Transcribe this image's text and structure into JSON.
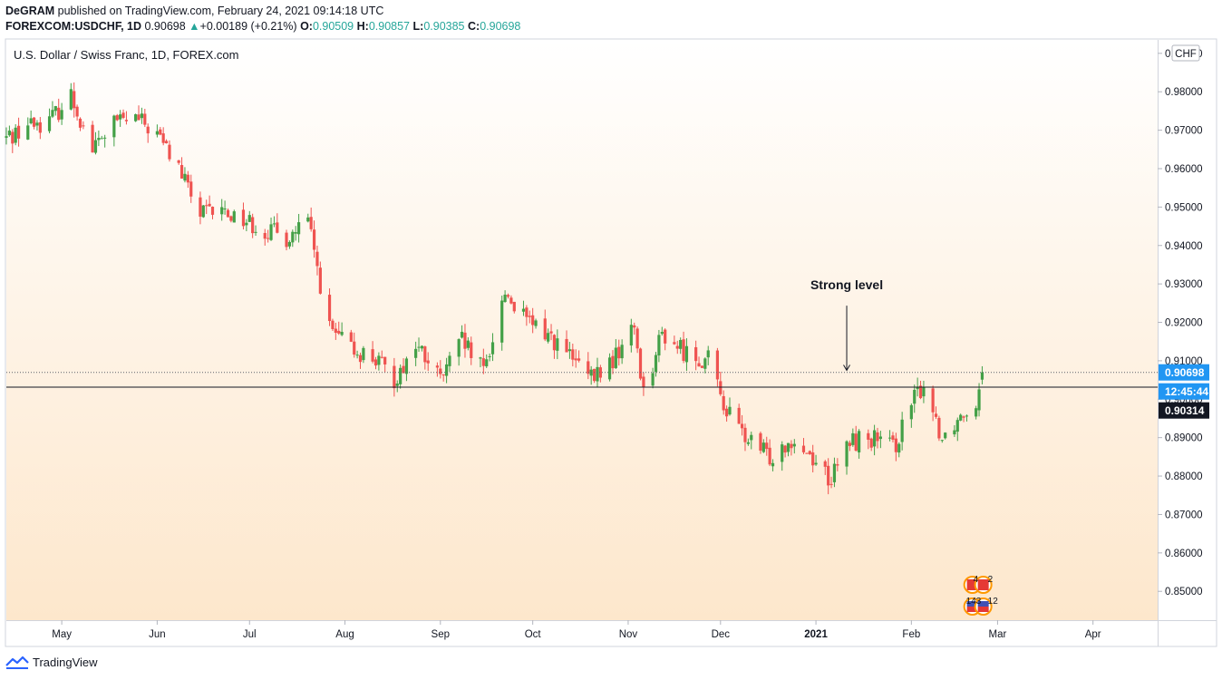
{
  "header": {
    "author": "DeGRAM",
    "published_text": "published on TradingView.com, February 24, 2021 09:14:18 UTC",
    "symbol": "FOREXCOM:USDCHF, 1D",
    "last": "0.90698",
    "change": "+0.00189 (+0.21%)",
    "o_label": "O:",
    "o_value": "0.90509",
    "h_label": "H:",
    "h_value": "0.90857",
    "l_label": "L:",
    "l_value": "0.90385",
    "c_label": "C:",
    "c_value": "0.90698"
  },
  "footer": {
    "brand": "TradingView"
  },
  "chart_data": {
    "type": "candlestick",
    "title": "U.S. Dollar / Swiss Franc, 1D, FOREX.com",
    "currency_badge": "CHF",
    "ylim": [
      0.8425,
      0.9935
    ],
    "y_ticks": [
      "0.99000",
      "0.98000",
      "0.97000",
      "0.96000",
      "0.95000",
      "0.94000",
      "0.93000",
      "0.92000",
      "0.91000",
      "0.90000",
      "0.89000",
      "0.88000",
      "0.87000",
      "0.86000",
      "0.85000"
    ],
    "x_ticks": [
      {
        "label": "May",
        "date": "2020-05-01"
      },
      {
        "label": "Jun",
        "date": "2020-06-01"
      },
      {
        "label": "Jul",
        "date": "2020-07-01"
      },
      {
        "label": "Aug",
        "date": "2020-08-01"
      },
      {
        "label": "Sep",
        "date": "2020-09-01"
      },
      {
        "label": "Oct",
        "date": "2020-10-01"
      },
      {
        "label": "Nov",
        "date": "2020-11-01"
      },
      {
        "label": "Dec",
        "date": "2020-12-01"
      },
      {
        "label": "2021",
        "date": "2021-01-01",
        "bold": true
      },
      {
        "label": "Feb",
        "date": "2021-02-01"
      },
      {
        "label": "Mar",
        "date": "2021-03-01"
      },
      {
        "label": "Apr",
        "date": "2021-04-01"
      }
    ],
    "x_range": [
      "2020-04-13",
      "2021-04-22"
    ],
    "price_labels": [
      {
        "text": "0.90698",
        "value": 0.90698,
        "bg": "#2196f3",
        "fg": "#ffffff"
      },
      {
        "text": "12:45:44",
        "value": 0.90442,
        "bg": "#2196f3",
        "fg": "#ffffff"
      },
      {
        "text": "0.90314",
        "value": 0.90314,
        "bg": "#131722",
        "fg": "#ffffff"
      }
    ],
    "last_price": 0.90698,
    "horizontal_level": 0.90314,
    "annotation": {
      "text": "Strong level",
      "date": "2021-01-11",
      "value": 0.93,
      "arrow_to": 0.9075
    },
    "events": {
      "top": {
        "a": "4",
        "b": "2"
      },
      "bottom": {
        "a": "143",
        "b": "12"
      }
    },
    "anchors": [
      {
        "date": "2020-04-13",
        "close": 0.968
      },
      {
        "date": "2020-04-20",
        "close": 0.9715
      },
      {
        "date": "2020-04-27",
        "close": 0.9725
      },
      {
        "date": "2020-05-04",
        "close": 0.979
      },
      {
        "date": "2020-05-11",
        "close": 0.965
      },
      {
        "date": "2020-05-18",
        "close": 0.972
      },
      {
        "date": "2020-05-25",
        "close": 0.973
      },
      {
        "date": "2020-06-01",
        "close": 0.969
      },
      {
        "date": "2020-06-08",
        "close": 0.96
      },
      {
        "date": "2020-06-15",
        "close": 0.948
      },
      {
        "date": "2020-06-22",
        "close": 0.949
      },
      {
        "date": "2020-06-29",
        "close": 0.947
      },
      {
        "date": "2020-07-06",
        "close": 0.944
      },
      {
        "date": "2020-07-13",
        "close": 0.942
      },
      {
        "date": "2020-07-20",
        "close": 0.946
      },
      {
        "date": "2020-07-27",
        "close": 0.918
      },
      {
        "date": "2020-08-03",
        "close": 0.913
      },
      {
        "date": "2020-08-10",
        "close": 0.911
      },
      {
        "date": "2020-08-17",
        "close": 0.905
      },
      {
        "date": "2020-08-24",
        "close": 0.914
      },
      {
        "date": "2020-09-01",
        "close": 0.905
      },
      {
        "date": "2020-09-08",
        "close": 0.915
      },
      {
        "date": "2020-09-15",
        "close": 0.907
      },
      {
        "date": "2020-09-22",
        "close": 0.928
      },
      {
        "date": "2020-09-29",
        "close": 0.92
      },
      {
        "date": "2020-10-06",
        "close": 0.917
      },
      {
        "date": "2020-10-13",
        "close": 0.911
      },
      {
        "date": "2020-10-20",
        "close": 0.905
      },
      {
        "date": "2020-10-27",
        "close": 0.91
      },
      {
        "date": "2020-11-03",
        "close": 0.919
      },
      {
        "date": "2020-11-06",
        "close": 0.902
      },
      {
        "date": "2020-11-12",
        "close": 0.917
      },
      {
        "date": "2020-11-20",
        "close": 0.912
      },
      {
        "date": "2020-11-27",
        "close": 0.91
      },
      {
        "date": "2020-12-03",
        "close": 0.897
      },
      {
        "date": "2020-12-10",
        "close": 0.889
      },
      {
        "date": "2020-12-17",
        "close": 0.885
      },
      {
        "date": "2020-12-24",
        "close": 0.89
      },
      {
        "date": "2020-12-31",
        "close": 0.885
      },
      {
        "date": "2021-01-06",
        "close": 0.879
      },
      {
        "date": "2021-01-12",
        "close": 0.889
      },
      {
        "date": "2021-01-19",
        "close": 0.89
      },
      {
        "date": "2021-01-26",
        "close": 0.887
      },
      {
        "date": "2021-02-02",
        "close": 0.9
      },
      {
        "date": "2021-02-05",
        "close": 0.904
      },
      {
        "date": "2021-02-11",
        "close": 0.89
      },
      {
        "date": "2021-02-17",
        "close": 0.896
      },
      {
        "date": "2021-02-22",
        "close": 0.9
      },
      {
        "date": "2021-02-24",
        "close": 0.90698
      }
    ]
  },
  "colors": {
    "up": "#26a69a",
    "upBody": "#43a047",
    "down": "#ef5350",
    "axis": "#b2b5be",
    "text": "#131722"
  }
}
